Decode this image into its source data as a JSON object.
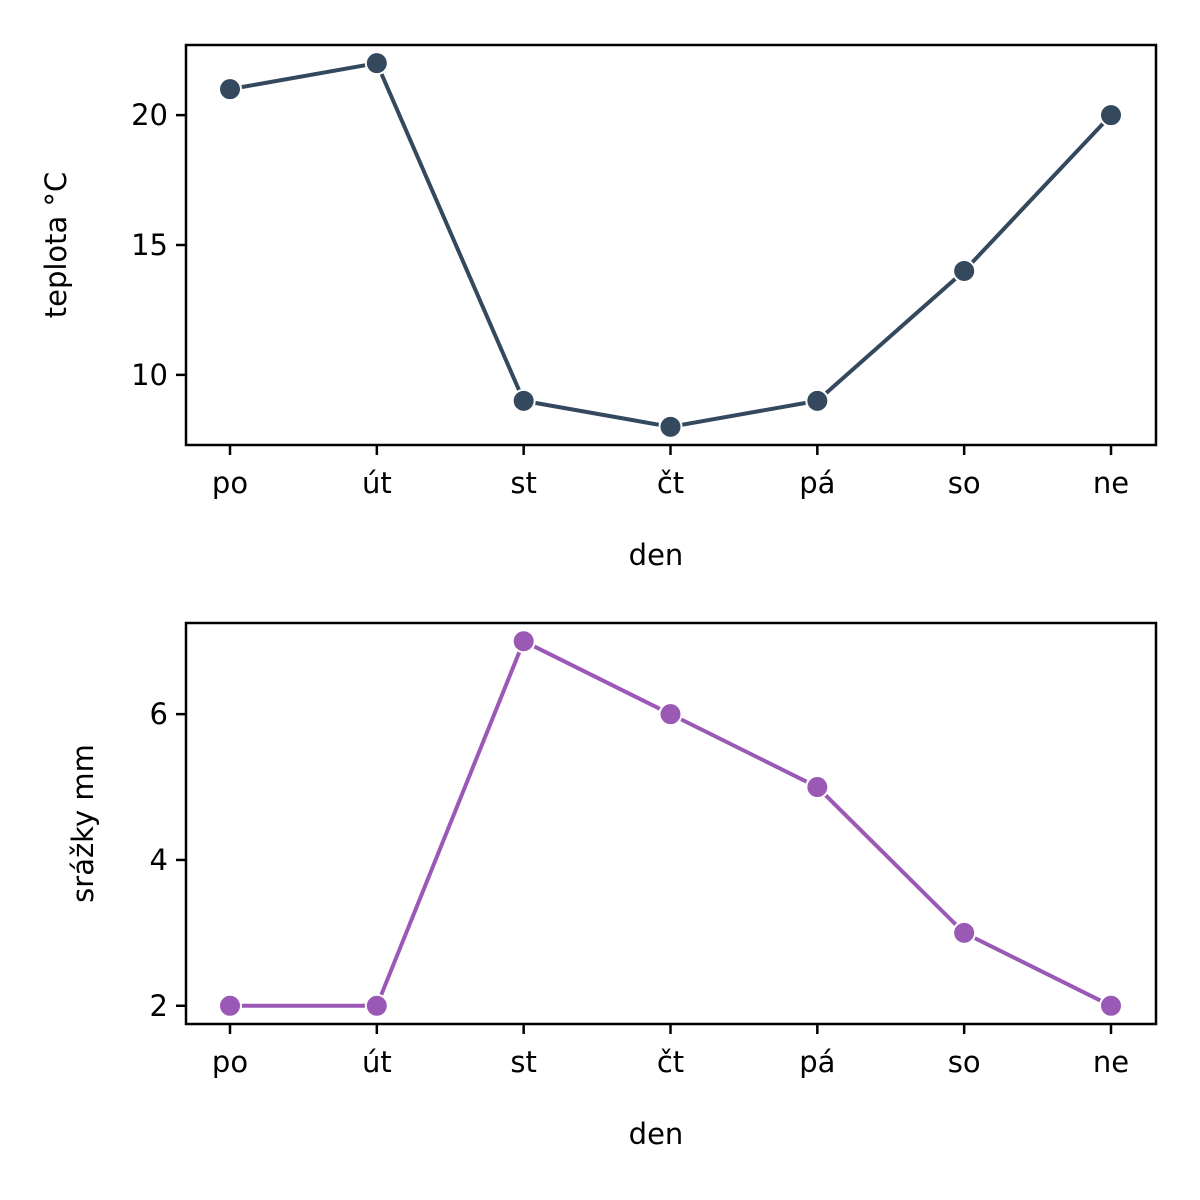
{
  "chart_data": [
    {
      "type": "line",
      "categories": [
        "po",
        "út",
        "st",
        "čt",
        "pá",
        "so",
        "ne"
      ],
      "series": [
        {
          "values": [
            21,
            22,
            9,
            8,
            9,
            14,
            20
          ],
          "color": "#34495e"
        }
      ],
      "xlabel": "den",
      "ylabel": "teplota °C",
      "ylim": [
        7.3,
        22.7
      ],
      "yticks": [
        10,
        15,
        20
      ],
      "grid": false,
      "markers": "circle"
    },
    {
      "type": "line",
      "categories": [
        "po",
        "út",
        "st",
        "čt",
        "pá",
        "so",
        "ne"
      ],
      "series": [
        {
          "values": [
            2,
            2,
            7,
            6,
            5,
            3,
            2
          ],
          "color": "#9b59b6"
        }
      ],
      "xlabel": "den",
      "ylabel": "srážky mm",
      "ylim": [
        1.75,
        7.25
      ],
      "yticks": [
        2,
        4,
        6
      ],
      "grid": false,
      "markers": "circle"
    }
  ]
}
